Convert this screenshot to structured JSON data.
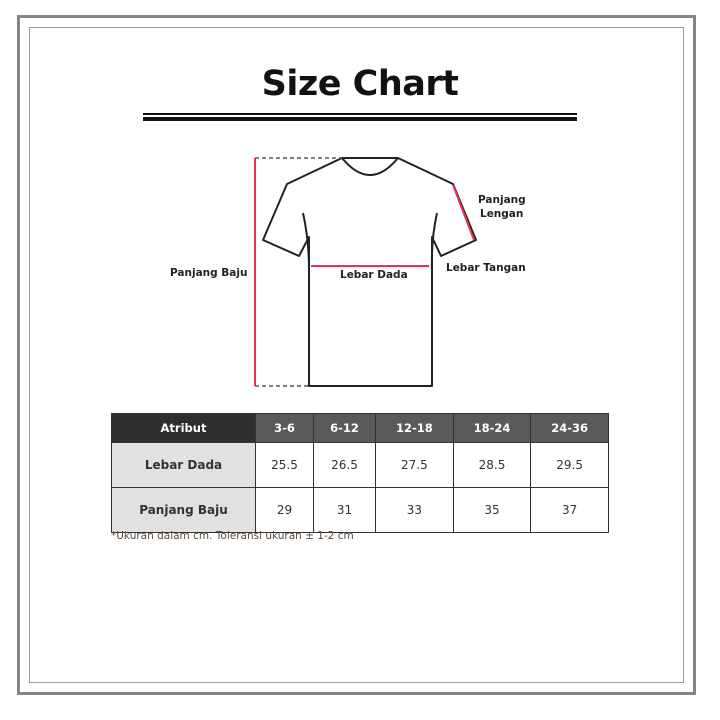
{
  "title": "Size Chart",
  "diagram_labels": {
    "panjang_baju": "Panjang Baju",
    "lebar_dada": "Lebar Dada",
    "panjang_lengan_1": "Panjang",
    "panjang_lengan_2": "Lengan",
    "lebar_tangan": "Lebar Tangan"
  },
  "colors": {
    "measure_line": "#e8344e",
    "header_first": "#2e2e2e",
    "header": "#5a5a5a",
    "attr_cell": "#e1e1e1"
  },
  "table": {
    "headers": [
      "Atribut",
      "3-6",
      "6-12",
      "12-18",
      "18-24",
      "24-36"
    ],
    "rows": [
      {
        "label": "Lebar Dada",
        "values": [
          "25.5",
          "26.5",
          "27.5",
          "28.5",
          "29.5"
        ]
      },
      {
        "label": "Panjang Baju",
        "values": [
          "29",
          "31",
          "33",
          "35",
          "37"
        ]
      }
    ]
  },
  "note": "*Ukuran dalam cm. Toleransi ukuran ± 1-2 cm"
}
